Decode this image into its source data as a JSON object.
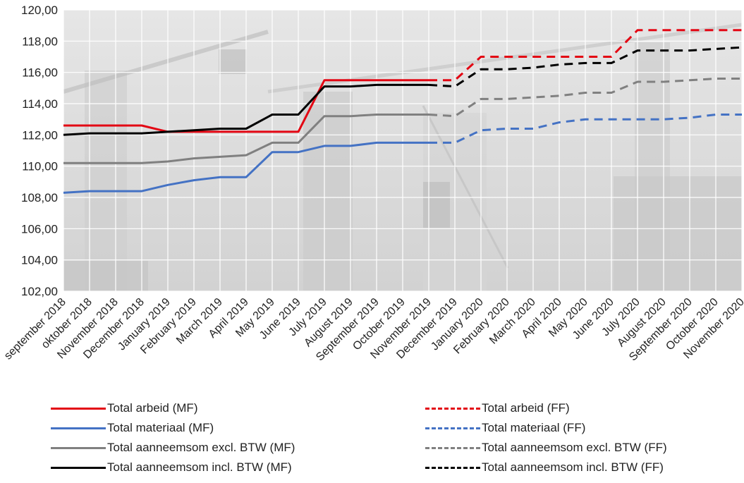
{
  "chart_data": {
    "type": "line",
    "background": "faded photograph of construction cranes and buildings",
    "grid": true,
    "legend_placement": "bottom",
    "ylim": [
      102,
      120
    ],
    "y_ticks": [
      "102,00",
      "104,00",
      "106,00",
      "108,00",
      "110,00",
      "112,00",
      "114,00",
      "116,00",
      "118,00",
      "120,00"
    ],
    "categories": [
      "september 2018",
      "oktober 2018",
      "November 2018",
      "December 2018",
      "January 2019",
      "February 2019",
      "March 2019",
      "April 2019",
      "May 2019",
      "June 2019",
      "July 2019",
      "August 2019",
      "September 2019",
      "October 2019",
      "November 2019",
      "December 2019",
      "January 2020",
      "February 2020",
      "March 2020",
      "April 2020",
      "May 2020",
      "June 2020",
      "July 2020",
      "August 2020",
      "September 2020",
      "October 2020",
      "November 2020"
    ],
    "series": [
      {
        "name": "Total arbeid (MF)",
        "color": "#e30613",
        "dash": false,
        "values": [
          112.6,
          112.6,
          112.6,
          112.6,
          112.2,
          112.2,
          112.2,
          112.2,
          112.2,
          112.2,
          115.5,
          115.5,
          115.5,
          115.5,
          115.5,
          null,
          null,
          null,
          null,
          null,
          null,
          null,
          null,
          null,
          null,
          null,
          null
        ]
      },
      {
        "name": "Total materiaal (MF)",
        "color": "#4472c4",
        "dash": false,
        "values": [
          108.3,
          108.4,
          108.4,
          108.4,
          108.8,
          109.1,
          109.3,
          109.3,
          110.9,
          110.9,
          111.3,
          111.3,
          111.5,
          111.5,
          111.5,
          null,
          null,
          null,
          null,
          null,
          null,
          null,
          null,
          null,
          null,
          null,
          null
        ]
      },
      {
        "name": "Total aanneemsom excl. BTW (MF)",
        "color": "#808080",
        "dash": false,
        "values": [
          110.2,
          110.2,
          110.2,
          110.2,
          110.3,
          110.5,
          110.6,
          110.7,
          111.5,
          111.5,
          113.2,
          113.2,
          113.3,
          113.3,
          113.3,
          null,
          null,
          null,
          null,
          null,
          null,
          null,
          null,
          null,
          null,
          null,
          null
        ]
      },
      {
        "name": "Total aanneemsom incl. BTW (MF)",
        "color": "#000000",
        "dash": false,
        "values": [
          112.0,
          112.1,
          112.1,
          112.1,
          112.2,
          112.3,
          112.4,
          112.4,
          113.3,
          113.3,
          115.1,
          115.1,
          115.2,
          115.2,
          115.2,
          null,
          null,
          null,
          null,
          null,
          null,
          null,
          null,
          null,
          null,
          null,
          null
        ]
      },
      {
        "name": "Total arbeid (FF)",
        "color": "#e30613",
        "dash": true,
        "values": [
          null,
          null,
          null,
          null,
          null,
          null,
          null,
          null,
          null,
          null,
          null,
          null,
          null,
          null,
          115.5,
          115.5,
          117.0,
          117.0,
          117.0,
          117.0,
          117.0,
          117.0,
          118.7,
          118.7,
          118.7,
          118.7,
          118.7
        ]
      },
      {
        "name": "Total materiaal (FF)",
        "color": "#4472c4",
        "dash": true,
        "values": [
          null,
          null,
          null,
          null,
          null,
          null,
          null,
          null,
          null,
          null,
          null,
          null,
          null,
          null,
          111.5,
          111.5,
          112.3,
          112.4,
          112.4,
          112.8,
          113.0,
          113.0,
          113.0,
          113.0,
          113.1,
          113.3,
          113.3
        ]
      },
      {
        "name": "Total aanneemsom excl. BTW (FF)",
        "color": "#808080",
        "dash": true,
        "values": [
          null,
          null,
          null,
          null,
          null,
          null,
          null,
          null,
          null,
          null,
          null,
          null,
          null,
          null,
          113.3,
          113.2,
          114.3,
          114.3,
          114.4,
          114.5,
          114.7,
          114.7,
          115.4,
          115.4,
          115.5,
          115.6,
          115.6
        ]
      },
      {
        "name": "Total aanneemsom incl. BTW (FF)",
        "color": "#000000",
        "dash": true,
        "values": [
          null,
          null,
          null,
          null,
          null,
          null,
          null,
          null,
          null,
          null,
          null,
          null,
          null,
          null,
          115.2,
          115.1,
          116.2,
          116.2,
          116.3,
          116.5,
          116.6,
          116.6,
          117.4,
          117.4,
          117.4,
          117.5,
          117.6
        ]
      }
    ]
  }
}
